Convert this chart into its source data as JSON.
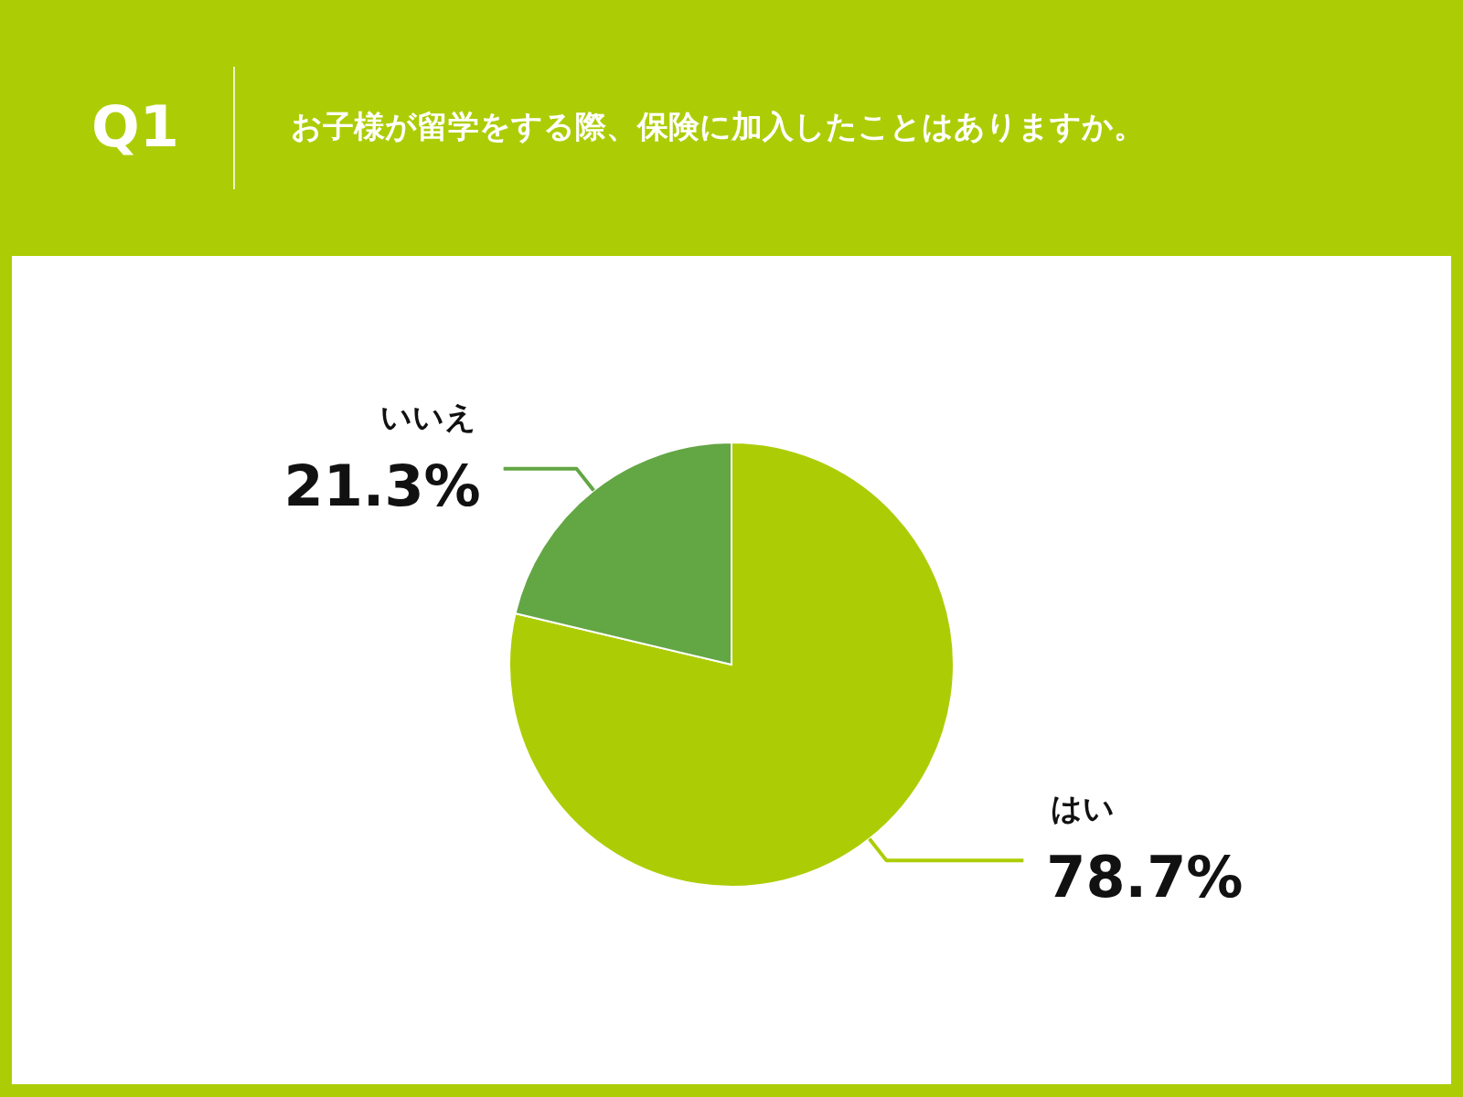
{
  "chart_data": {
    "type": "pie",
    "title": "Q1",
    "subtitle": "お子様が留学をする際、保険に加入したことはありますか。",
    "categories": [
      "はい",
      "いいえ"
    ],
    "values": [
      78.7,
      21.3
    ],
    "colors": [
      "#accd06",
      "#63a644"
    ],
    "value_labels": [
      "78.7%",
      "21.3%"
    ]
  }
}
